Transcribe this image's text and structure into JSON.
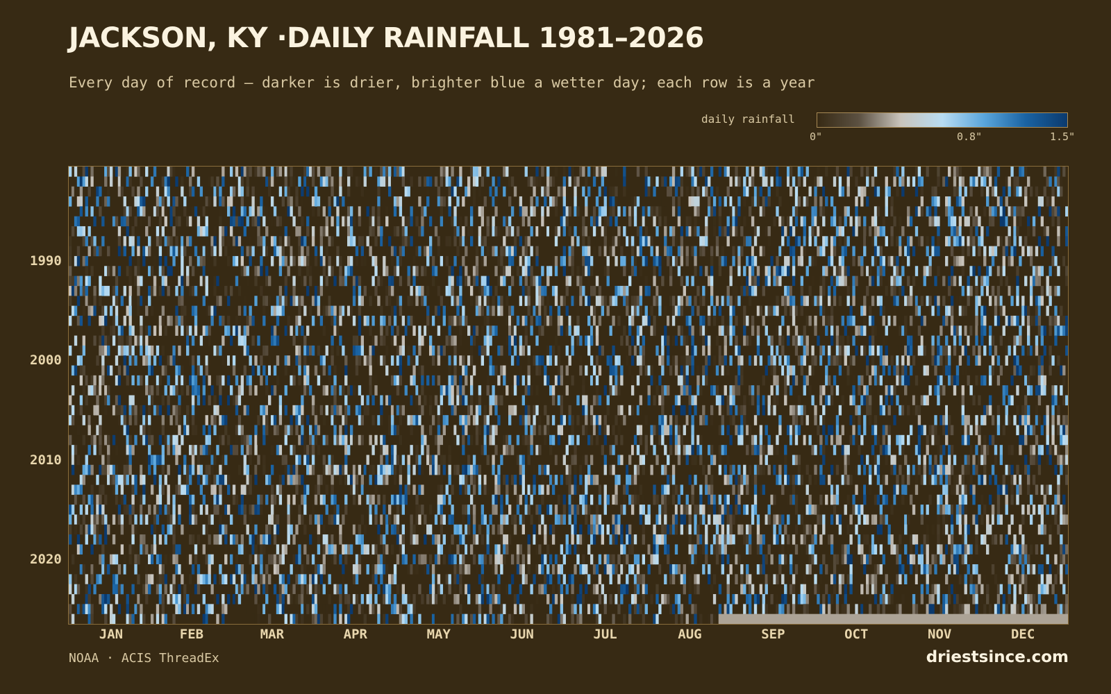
{
  "title": "JACKSON, KY ·DAILY RAINFALL 1981–2026",
  "subtitle": "Every day of record — darker is drier, brighter blue a wetter day; each row is a year",
  "legend": {
    "label": "daily rainfall",
    "ticks": [
      "0\"",
      "0.8\"",
      "1.5\""
    ],
    "tick_values": [
      0,
      0.8,
      1.5
    ],
    "colors": [
      "#372a14",
      "#5c5142",
      "#c9c4bc",
      "#b8dcf2",
      "#5aa6dc",
      "#1a63a3",
      "#0b3a6e"
    ]
  },
  "footer": {
    "source": "NOAA · ACIS ThreadEx",
    "brand": "driestsince.com"
  },
  "chart_data": {
    "type": "heatmap",
    "title": "JACKSON, KY ·DAILY RAINFALL 1981–2026",
    "subtitle": "Every day of record — darker is drier, brighter blue a wetter day; each row is a year",
    "x": {
      "unit": "day of year",
      "range": [
        1,
        366
      ],
      "tick_labels": [
        "JAN",
        "FEB",
        "MAR",
        "APR",
        "MAY",
        "JUN",
        "JUL",
        "AUG",
        "SEP",
        "OCT",
        "NOV",
        "DEC"
      ]
    },
    "y": {
      "unit": "year",
      "range": [
        1981,
        2026
      ],
      "tick_labels": [
        "1990",
        "2000",
        "2010",
        "2020"
      ]
    },
    "value_unit": "inches",
    "color_range": [
      0,
      1.5
    ],
    "record_end": "2026-08-26",
    "no_data_color": "#aca396",
    "background_color": "#372a14",
    "sources": [
      "NOAA",
      "ACIS ThreadEx"
    ]
  }
}
